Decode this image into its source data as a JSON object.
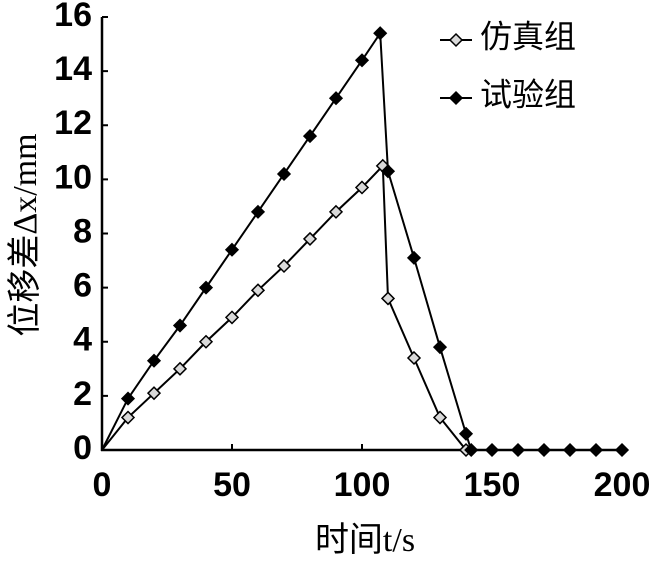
{
  "chart_data": {
    "type": "line",
    "xlabel": "时间t/s",
    "ylabel": "位移差Δx/mm",
    "xlim": [
      0,
      200
    ],
    "xticks": [
      0,
      50,
      100,
      150,
      200
    ],
    "ylim": [
      0,
      16
    ],
    "yticks": [
      0,
      2,
      4,
      6,
      8,
      10,
      12,
      14,
      16
    ],
    "legend": "upper right",
    "series": [
      {
        "name": "仿真组",
        "color": "#000000",
        "marker_fill": "#d9d9d9",
        "x": [
          0,
          10,
          20,
          30,
          40,
          50,
          60,
          70,
          80,
          90,
          100,
          108,
          110,
          120,
          130,
          140
        ],
        "values": [
          0,
          1.2,
          2.1,
          3.0,
          4.0,
          4.9,
          5.9,
          6.8,
          7.8,
          8.8,
          9.7,
          10.5,
          5.6,
          3.4,
          1.2,
          0
        ]
      },
      {
        "name": "试验组",
        "color": "#000000",
        "marker_fill": "#000000",
        "x": [
          0,
          10,
          20,
          30,
          40,
          50,
          60,
          70,
          80,
          90,
          100,
          107,
          110,
          120,
          130,
          140,
          142,
          150,
          160,
          170,
          180,
          190,
          200
        ],
        "values": [
          0,
          1.9,
          3.3,
          4.6,
          6.0,
          7.4,
          8.8,
          10.2,
          11.6,
          13.0,
          14.4,
          15.4,
          10.3,
          7.1,
          3.8,
          0.6,
          0,
          0,
          0,
          0,
          0,
          0,
          0
        ]
      }
    ]
  }
}
